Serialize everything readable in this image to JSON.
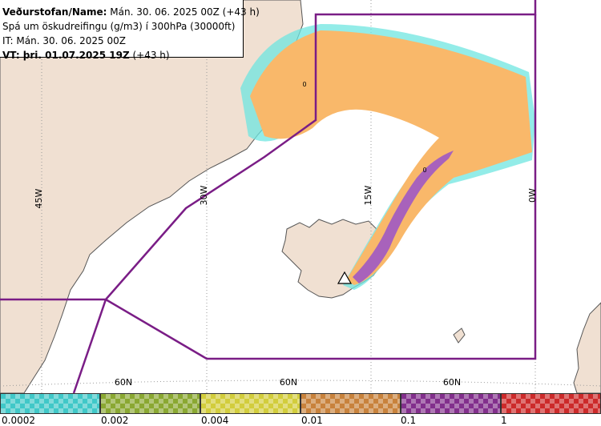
{
  "header": {
    "line1_label": "Veðurstofan/Name:",
    "line1_value": "Mán. 30. 06. 2025 00Z (+43 h)",
    "line2": "Spá um öskudreifingu (g/m3) í 300hPa (30000ft)",
    "line3": "IT: Mán. 30. 06. 2025 00Z",
    "line4_label": "VT: þri. 01.07.2025 19Z",
    "line4_value": "(+43 h)"
  },
  "map": {
    "longitude_labels": [
      "45W",
      "30W",
      "15W",
      "0W"
    ],
    "latitude_labels": [
      "60N",
      "60N",
      "60N"
    ],
    "contour_labels": [
      "0",
      "0"
    ],
    "colors": {
      "ocean": "#ffffff",
      "land": "#f0e0d2",
      "coast": "#555555",
      "grid": "#9a9a9a",
      "fir_boundary": "#7a1d86",
      "ash_low": "#f9b86a",
      "ash_high": "#a862bb",
      "ash_fringe": "#6fe6e0"
    },
    "volcano_marker": "triangle-icon"
  },
  "legend": {
    "labels": [
      "0.0002",
      "0.002",
      "0.004",
      "0.01",
      "0.1",
      "1"
    ],
    "colors": [
      "#40c8c8",
      "#8aa832",
      "#d2cd3c",
      "#c8823c",
      "#822f8c",
      "#cc2a2a"
    ]
  }
}
